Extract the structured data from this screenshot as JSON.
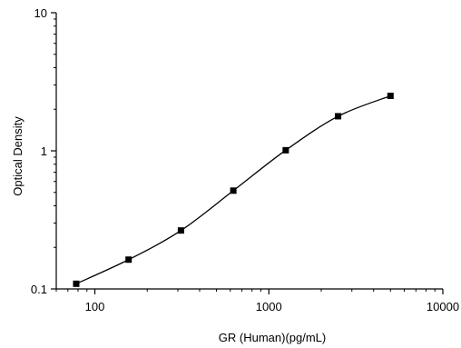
{
  "chart_data": {
    "type": "scatter",
    "xlabel": "GR (Human)(pg/mL)",
    "ylabel": "Optical Density",
    "xscale": "log",
    "yscale": "log",
    "xlim": [
      60,
      10000
    ],
    "ylim": [
      0.1,
      10
    ],
    "x_ticks": [
      {
        "value": 100,
        "label": "100"
      },
      {
        "value": 1000,
        "label": "1000"
      },
      {
        "value": 10000,
        "label": "10000"
      }
    ],
    "y_ticks": [
      {
        "value": 0.1,
        "label": "0.1"
      },
      {
        "value": 1,
        "label": "1"
      },
      {
        "value": 10,
        "label": "10"
      }
    ],
    "grid": false,
    "series": [
      {
        "x": [
          78.125,
          156.25,
          312.5,
          625,
          1250,
          2500,
          5000
        ],
        "y": [
          0.109,
          0.163,
          0.265,
          0.515,
          1.01,
          1.78,
          2.5
        ],
        "fit_curve": "4PL"
      }
    ]
  }
}
